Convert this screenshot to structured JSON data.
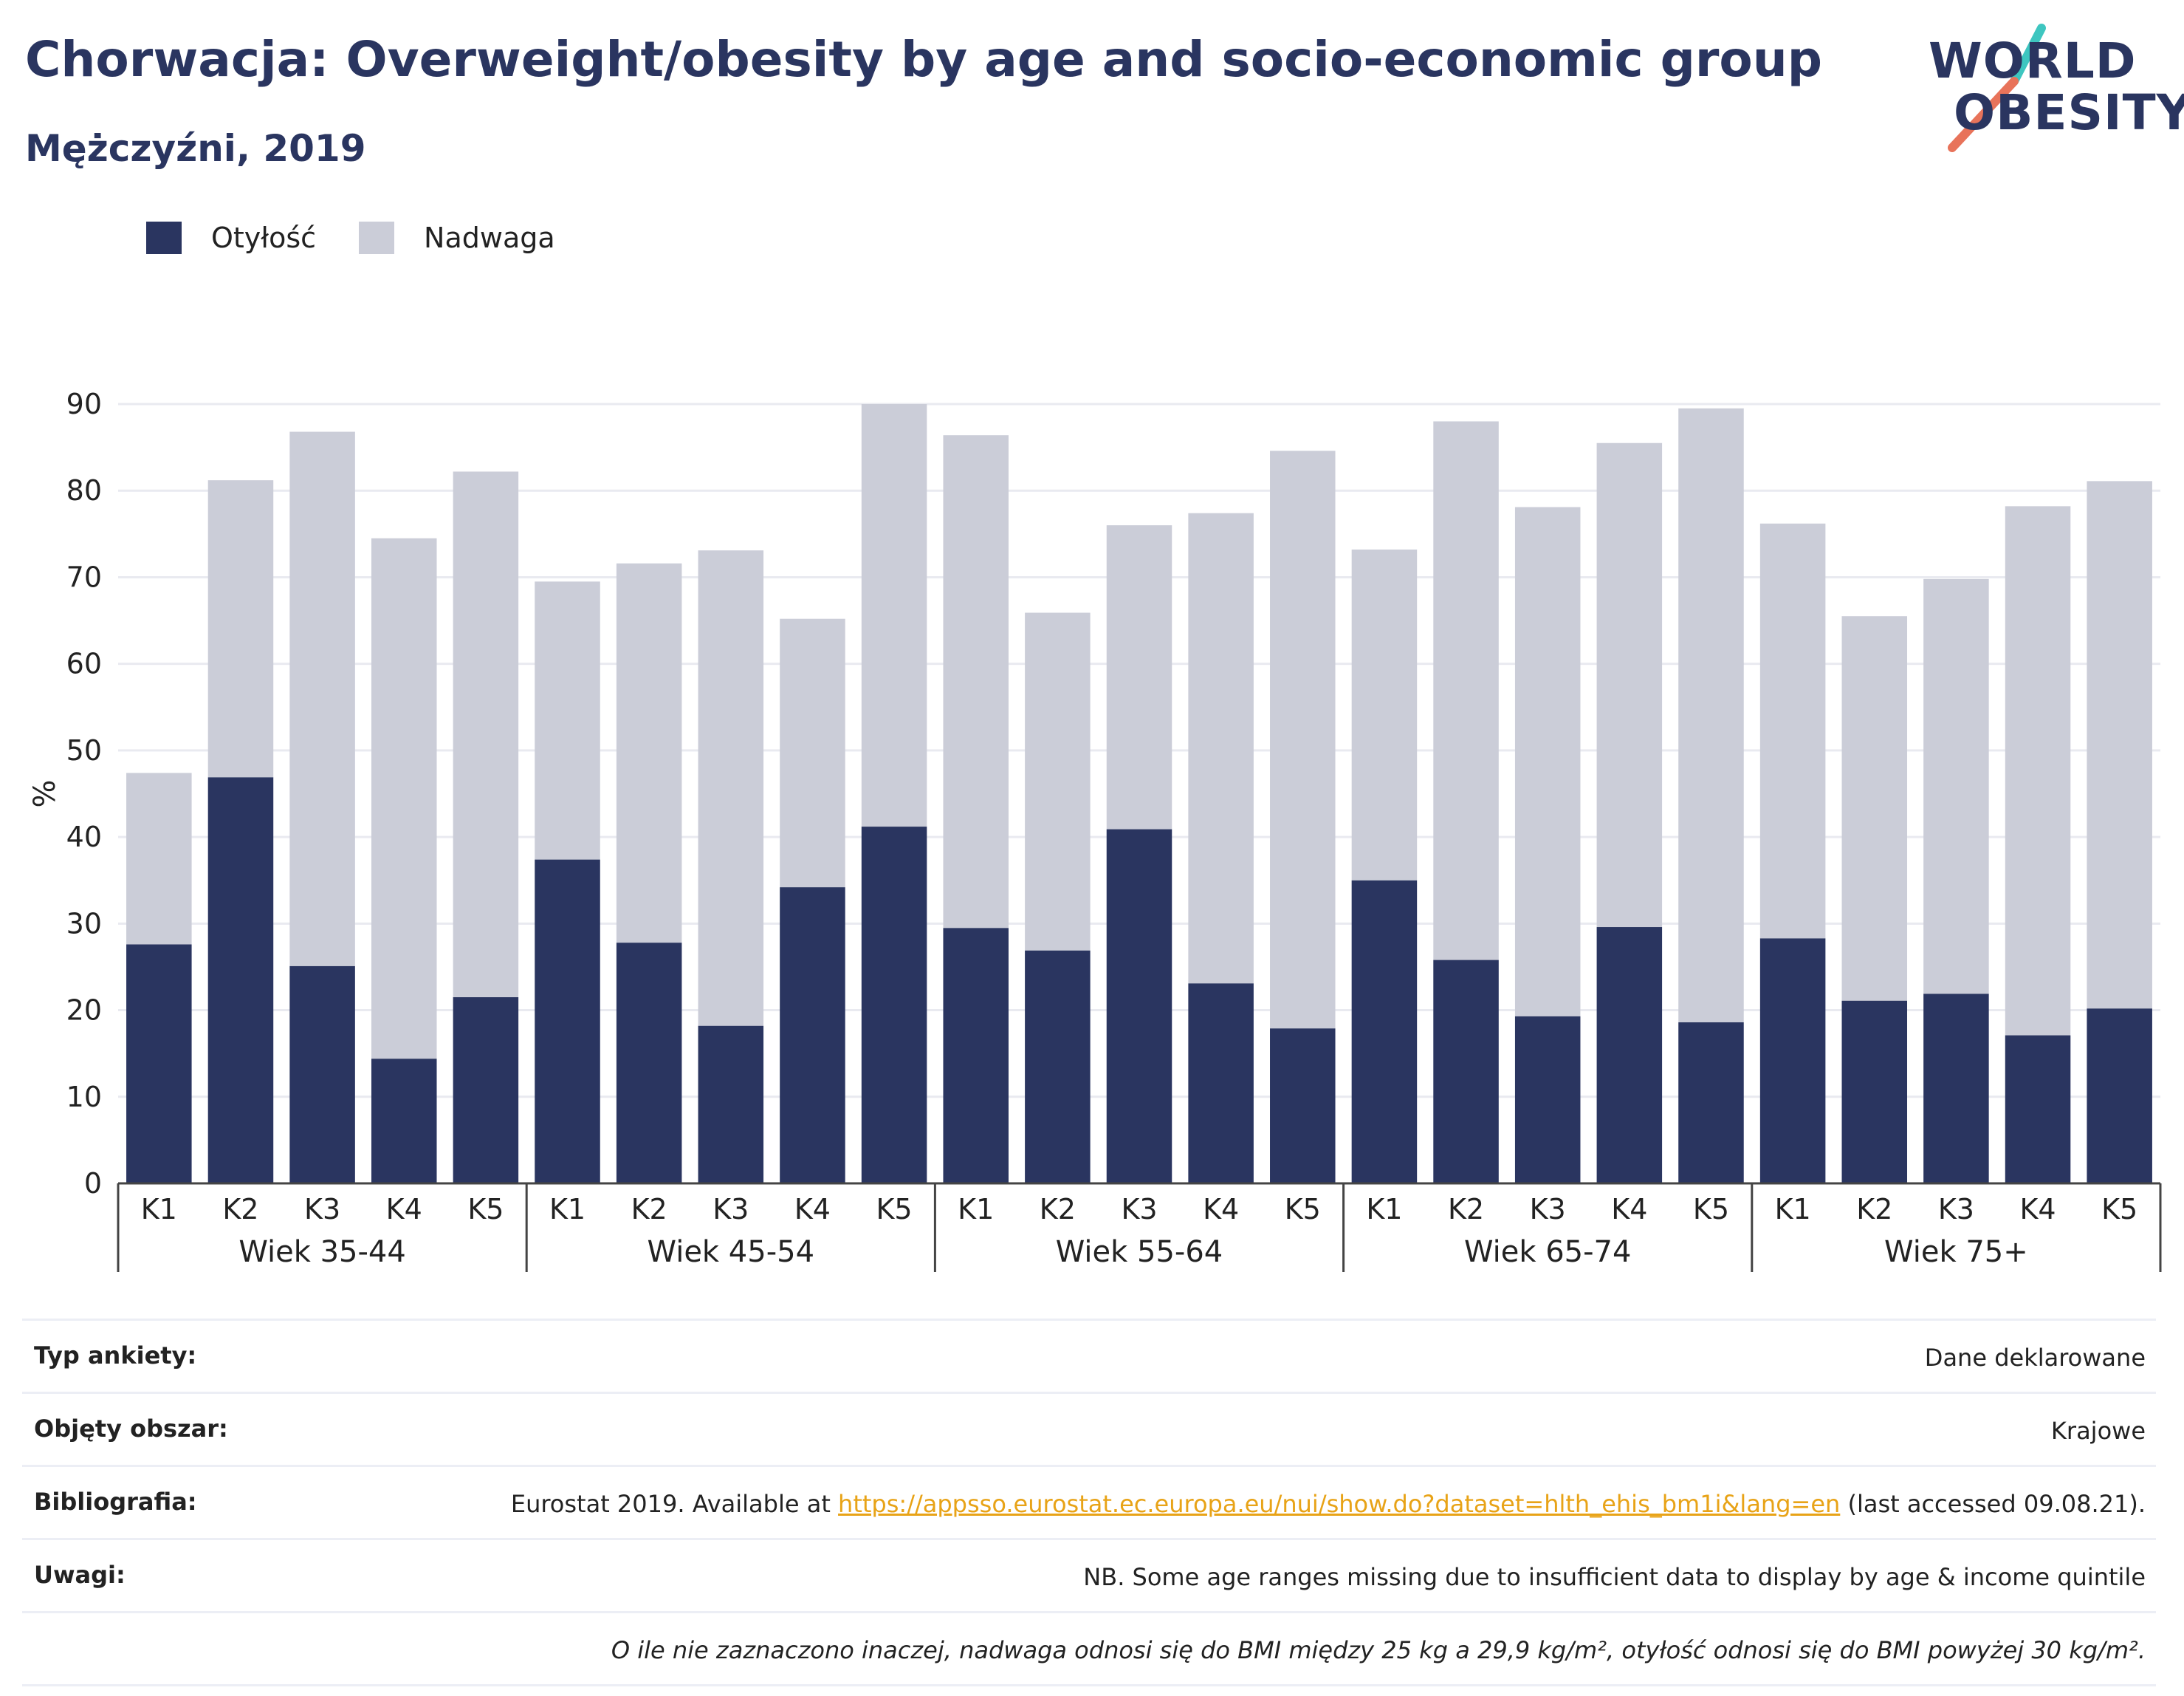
{
  "header": {
    "title": "Chorwacja: Overweight/obesity by age and socio-economic group",
    "subtitle": "Mężczyźni, 2019"
  },
  "logo": {
    "line1": "WORLD",
    "line2": "OBESITY"
  },
  "colors": {
    "obesity": "#2a3560",
    "overweight": "#cbcdd8",
    "title": "#2a3560",
    "link": "#e8a317",
    "logo_teal": "#3ec6c0",
    "logo_coral": "#e8735a"
  },
  "chart_data": {
    "type": "bar",
    "stacked": true,
    "ylabel": "%",
    "ylim": [
      0,
      90
    ],
    "yticks": [
      0,
      10,
      20,
      30,
      40,
      50,
      60,
      70,
      80,
      90
    ],
    "grid": true,
    "legend_position": "top-left",
    "groups": [
      "Wiek 35-44",
      "Wiek 45-54",
      "Wiek 55-64",
      "Wiek 65-74",
      "Wiek 75+"
    ],
    "categories": [
      "K1",
      "K2",
      "K3",
      "K4",
      "K5"
    ],
    "series": [
      {
        "name": "Otyłość",
        "values": [
          [
            27.6,
            46.9,
            25.1,
            14.4,
            21.5
          ],
          [
            37.4,
            27.8,
            18.2,
            34.2,
            41.2
          ],
          [
            29.5,
            26.9,
            40.9,
            23.1,
            17.9
          ],
          [
            35.0,
            25.8,
            19.3,
            29.6,
            18.6
          ],
          [
            28.3,
            21.1,
            21.9,
            17.1,
            20.2
          ]
        ]
      },
      {
        "name": "Nadwaga",
        "values": [
          [
            19.8,
            34.3,
            61.7,
            60.1,
            60.7
          ],
          [
            32.1,
            43.8,
            54.9,
            31.0,
            48.8
          ],
          [
            56.9,
            39.0,
            35.1,
            54.3,
            66.7
          ],
          [
            38.2,
            62.2,
            58.8,
            55.9,
            70.9
          ],
          [
            47.9,
            44.4,
            47.9,
            61.1,
            60.9
          ]
        ]
      }
    ]
  },
  "info": {
    "survey_label": "Typ ankiety:",
    "survey_value": "Dane deklarowane",
    "area_label": "Objęty obszar:",
    "area_value": "Krajowe",
    "biblio_label": "Bibliografia:",
    "biblio_prefix": "Eurostat 2019. Available at ",
    "biblio_link": "https://appsso.eurostat.ec.europa.eu/nui/show.do?dataset=hlth_ehis_bm1i&lang=en",
    "biblio_suffix": " (last accessed 09.08.21).",
    "notes_label": "Uwagi:",
    "notes_value": "NB. Some age ranges missing due to insufficient data to display by age & income quintile",
    "footnote": "O ile nie zaznaczono inaczej, nadwaga odnosi się do BMI między 25 kg a 29,9 kg/m², otyłość odnosi się do BMI powyżej 30 kg/m²."
  }
}
